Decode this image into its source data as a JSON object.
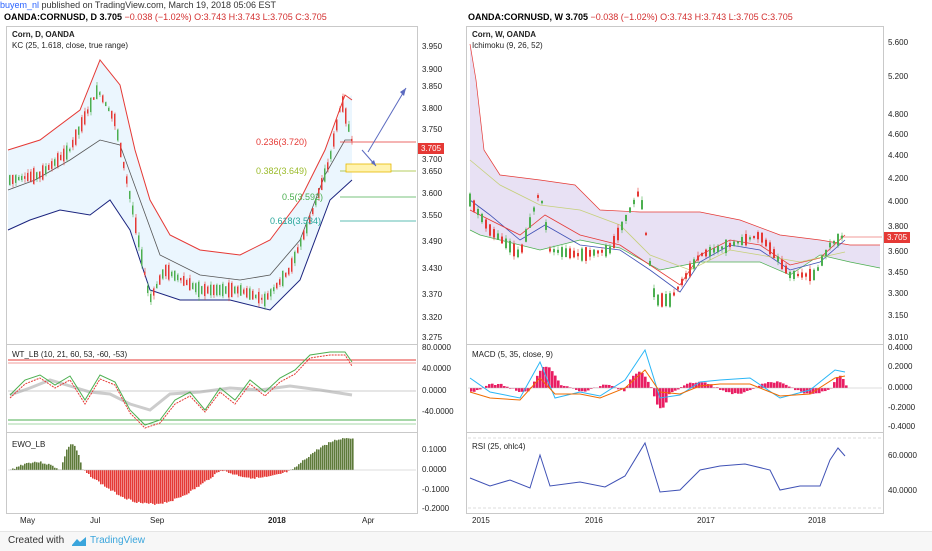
{
  "topbar": {
    "user": "buyem_nl",
    "published": "published on TradingView.com, March 19, 2018 05:06 EST"
  },
  "left": {
    "ohlc": "OANDA:CORNUSD, D  3.705",
    "change": "−0.038 (−1.02%)",
    "ohlc_vals": "O:3.743  H:3.743  L:3.705  C:3.705",
    "title": "Corn, D, OANDA",
    "indicator": "KC (25, 1.618, close, true range)",
    "price_tag": "3.705",
    "fibs": [
      {
        "label": "0.236(3.720)",
        "color": "#e53935"
      },
      {
        "label": "0.382(3.649)",
        "color": "#9bbb2a"
      },
      {
        "label": "0.5(3.592)",
        "color": "#4caf50"
      },
      {
        "label": "0.618(3.534)",
        "color": "#26a69a"
      }
    ],
    "yaxis": [
      "3.950",
      "3.900",
      "3.850",
      "3.800",
      "3.750",
      "3.700",
      "3.650",
      "3.600",
      "3.550",
      "3.490",
      "3.430",
      "3.370",
      "3.320",
      "3.275"
    ],
    "xaxis": [
      "May",
      "Jul",
      "Sep",
      "2018",
      "Apr"
    ],
    "wt_label": "WT_LB (10, 21, 60, 53, -60, -53)",
    "wt_axis": [
      "80.0000",
      "40.0000",
      "0.0000",
      "-40.0000"
    ],
    "ewo_label": "EWO_LB",
    "ewo_axis": [
      "0.1000",
      "0.0000",
      "-0.1000",
      "-0.2000"
    ]
  },
  "right": {
    "ohlc": "OANDA:CORNUSD, W  3.705",
    "change": "−0.038 (−1.02%)",
    "ohlc_vals": "O:3.743  H:3.743  L:3.705  C:3.705",
    "title": "Corn, W, OANDA",
    "indicator": "Ichimoku (9, 26, 52)",
    "price_tag": "3.705",
    "yaxis": [
      "5.600",
      "5.200",
      "4.800",
      "4.600",
      "4.400",
      "4.200",
      "4.000",
      "3.800",
      "3.600",
      "3.450",
      "3.300",
      "3.150",
      "3.010"
    ],
    "xaxis": [
      "2015",
      "2016",
      "2017",
      "2018"
    ],
    "macd_label": "MACD (5, 35, close, 9)",
    "macd_axis": [
      "0.4000",
      "0.2000",
      "0.0000",
      "-0.2000",
      "-0.4000"
    ],
    "rsi_label": "RSI (25, ohlc4)",
    "rsi_axis": [
      "60.0000",
      "40.0000"
    ]
  },
  "footer": {
    "created": "Created with",
    "brand": "TradingView"
  },
  "colors": {
    "up": "#4caf50",
    "down": "#e53935",
    "accent": "#2962ff"
  }
}
